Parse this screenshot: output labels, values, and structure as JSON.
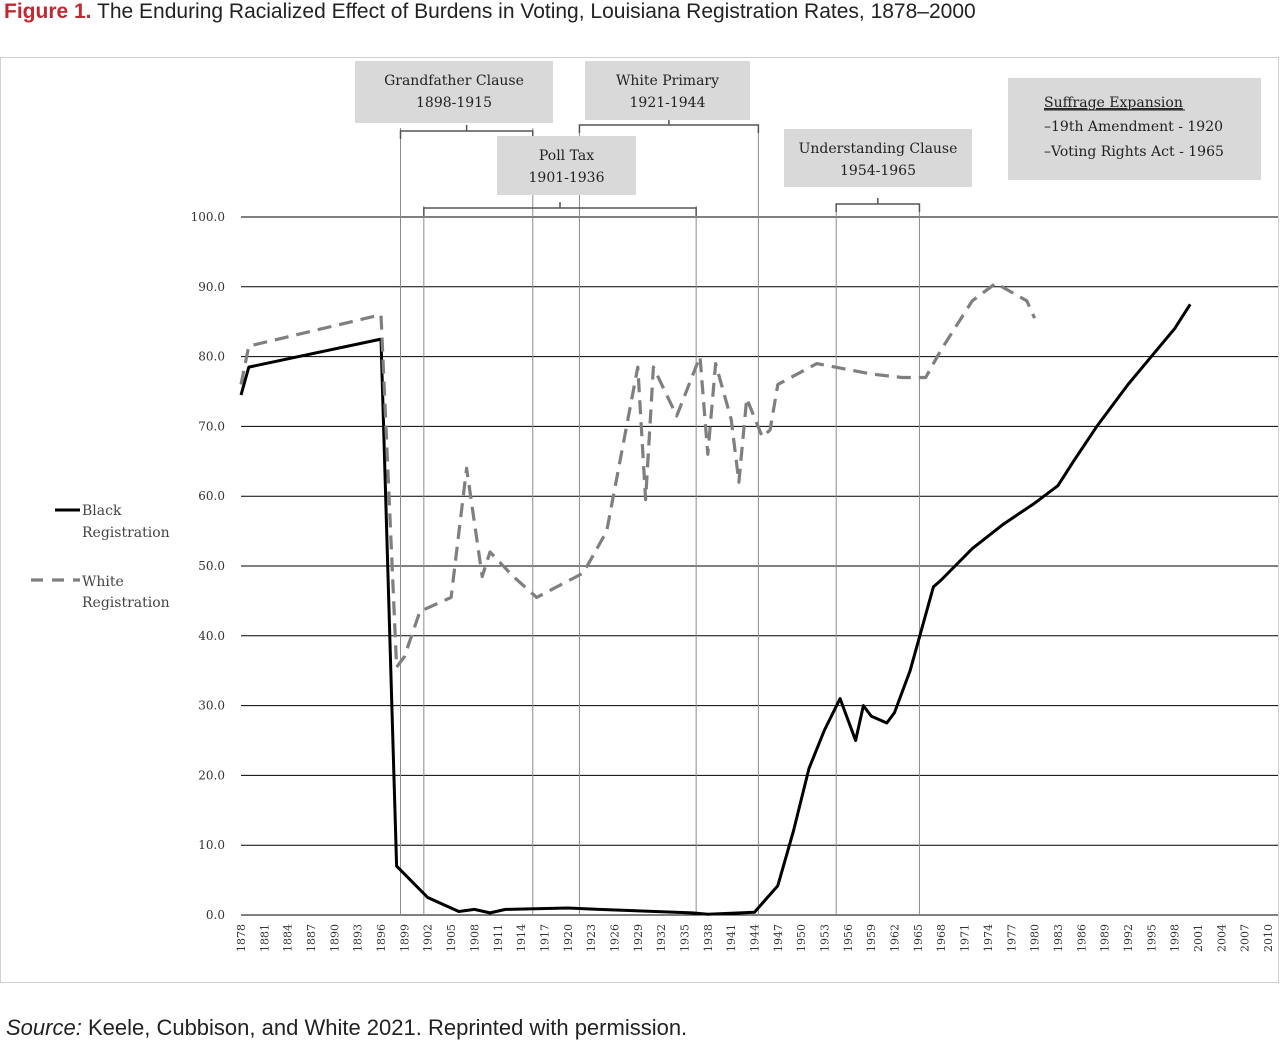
{
  "figure": {
    "label": "Figure 1.",
    "title": "The Enduring Racialized Effect of Burdens in Voting, Louisiana Registration Rates, 1878–2000"
  },
  "source": {
    "label": "Source:",
    "text": "Keele, Cubbison, and White 2021. Reprinted with permission."
  },
  "chart_data": {
    "type": "line",
    "title": "",
    "xlabel": "",
    "ylabel": "",
    "ylim": [
      0,
      100
    ],
    "y_ticks": [
      "0.0",
      "10.0",
      "20.0",
      "30.0",
      "40.0",
      "50.0",
      "60.0",
      "70.0",
      "80.0",
      "90.0",
      "100.0"
    ],
    "x_ticks": [
      "1878",
      "1881",
      "1884",
      "1887",
      "1890",
      "1893",
      "1896",
      "1899",
      "1902",
      "1905",
      "1908",
      "1911",
      "1914",
      "1917",
      "1920",
      "1923",
      "1926",
      "1929",
      "1932",
      "1935",
      "1938",
      "1941",
      "1944",
      "1947",
      "1950",
      "1953",
      "1956",
      "1959",
      "1962",
      "1965",
      "1968",
      "1971",
      "1974",
      "1977",
      "1980",
      "1983",
      "1986",
      "1989",
      "1992",
      "1995",
      "1998",
      "2001",
      "2004",
      "2007",
      "2010"
    ],
    "grid": "horizontal",
    "legend_position": "left",
    "series": [
      {
        "name": "Black Registration",
        "style": "solid",
        "color": "#000000",
        "points": [
          [
            1878,
            74.5
          ],
          [
            1879,
            78.5
          ],
          [
            1896,
            82.5
          ],
          [
            1898,
            7.0
          ],
          [
            1902,
            2.5
          ],
          [
            1906,
            0.5
          ],
          [
            1908,
            0.8
          ],
          [
            1910,
            0.3
          ],
          [
            1912,
            0.8
          ],
          [
            1920,
            1.0
          ],
          [
            1924,
            0.8
          ],
          [
            1936,
            0.3
          ],
          [
            1938,
            0.1
          ],
          [
            1944,
            0.4
          ],
          [
            1947,
            4.2
          ],
          [
            1949,
            12.0
          ],
          [
            1951,
            21.0
          ],
          [
            1953,
            26.5
          ],
          [
            1955,
            31.0
          ],
          [
            1957,
            25.0
          ],
          [
            1958,
            30.0
          ],
          [
            1959,
            28.5
          ],
          [
            1961,
            27.5
          ],
          [
            1962,
            29.0
          ],
          [
            1964,
            35.0
          ],
          [
            1967,
            47.0
          ],
          [
            1968,
            48.0
          ],
          [
            1972,
            52.5
          ],
          [
            1976,
            56.0
          ],
          [
            1980,
            59.0
          ],
          [
            1983,
            61.5
          ],
          [
            1985,
            65.0
          ],
          [
            1988,
            70.0
          ],
          [
            1992,
            76.0
          ],
          [
            1995,
            80.0
          ],
          [
            1998,
            84.0
          ],
          [
            2000,
            87.5
          ]
        ]
      },
      {
        "name": "White Registration",
        "style": "dashed",
        "color": "#7f7f7f",
        "points": [
          [
            1878,
            76
          ],
          [
            1879,
            81.5
          ],
          [
            1896,
            86
          ],
          [
            1898,
            35.5
          ],
          [
            1899,
            37
          ],
          [
            1901,
            43.5
          ],
          [
            1905,
            45.5
          ],
          [
            1907,
            64
          ],
          [
            1909,
            48.5
          ],
          [
            1910,
            52
          ],
          [
            1913,
            48.5
          ],
          [
            1916,
            45.5
          ],
          [
            1922,
            49
          ],
          [
            1925,
            55
          ],
          [
            1929,
            78.5
          ],
          [
            1930,
            59.5
          ],
          [
            1931,
            78.5
          ],
          [
            1934,
            71.5
          ],
          [
            1937,
            80
          ],
          [
            1938,
            66
          ],
          [
            1939,
            79
          ],
          [
            1941,
            71
          ],
          [
            1942,
            62
          ],
          [
            1943,
            74
          ],
          [
            1945,
            68.5
          ],
          [
            1946,
            69.5
          ],
          [
            1947,
            76
          ],
          [
            1952,
            79
          ],
          [
            1959,
            77.5
          ],
          [
            1963,
            77
          ],
          [
            1966,
            77
          ],
          [
            1968,
            81
          ],
          [
            1972,
            88
          ],
          [
            1975,
            90.5
          ],
          [
            1979,
            88
          ],
          [
            1980,
            85.5
          ]
        ]
      }
    ],
    "annotations": [
      {
        "name": "grandfather-clause",
        "lines": [
          "Grandfather Clause",
          "1898-1915"
        ]
      },
      {
        "name": "white-primary",
        "lines": [
          "White Primary",
          "1921-1944"
        ]
      },
      {
        "name": "poll-tax",
        "lines": [
          "Poll Tax",
          "1901-1936"
        ]
      },
      {
        "name": "understanding-clause",
        "lines": [
          "Understanding Clause",
          "1954-1965"
        ]
      }
    ],
    "suffrage_box": {
      "heading": "Suffrage Expansion",
      "lines": [
        "–19th Amendment - 1920",
        "–Voting Rights Act - 1965"
      ]
    },
    "legend": [
      {
        "lines": [
          "Black",
          "Registration"
        ]
      },
      {
        "lines": [
          "White",
          "Registration"
        ]
      }
    ],
    "colors": {
      "box": "#d9d9d9",
      "grid": "#000000",
      "bracket": "#555555",
      "guide": "#8c8c8c"
    }
  }
}
